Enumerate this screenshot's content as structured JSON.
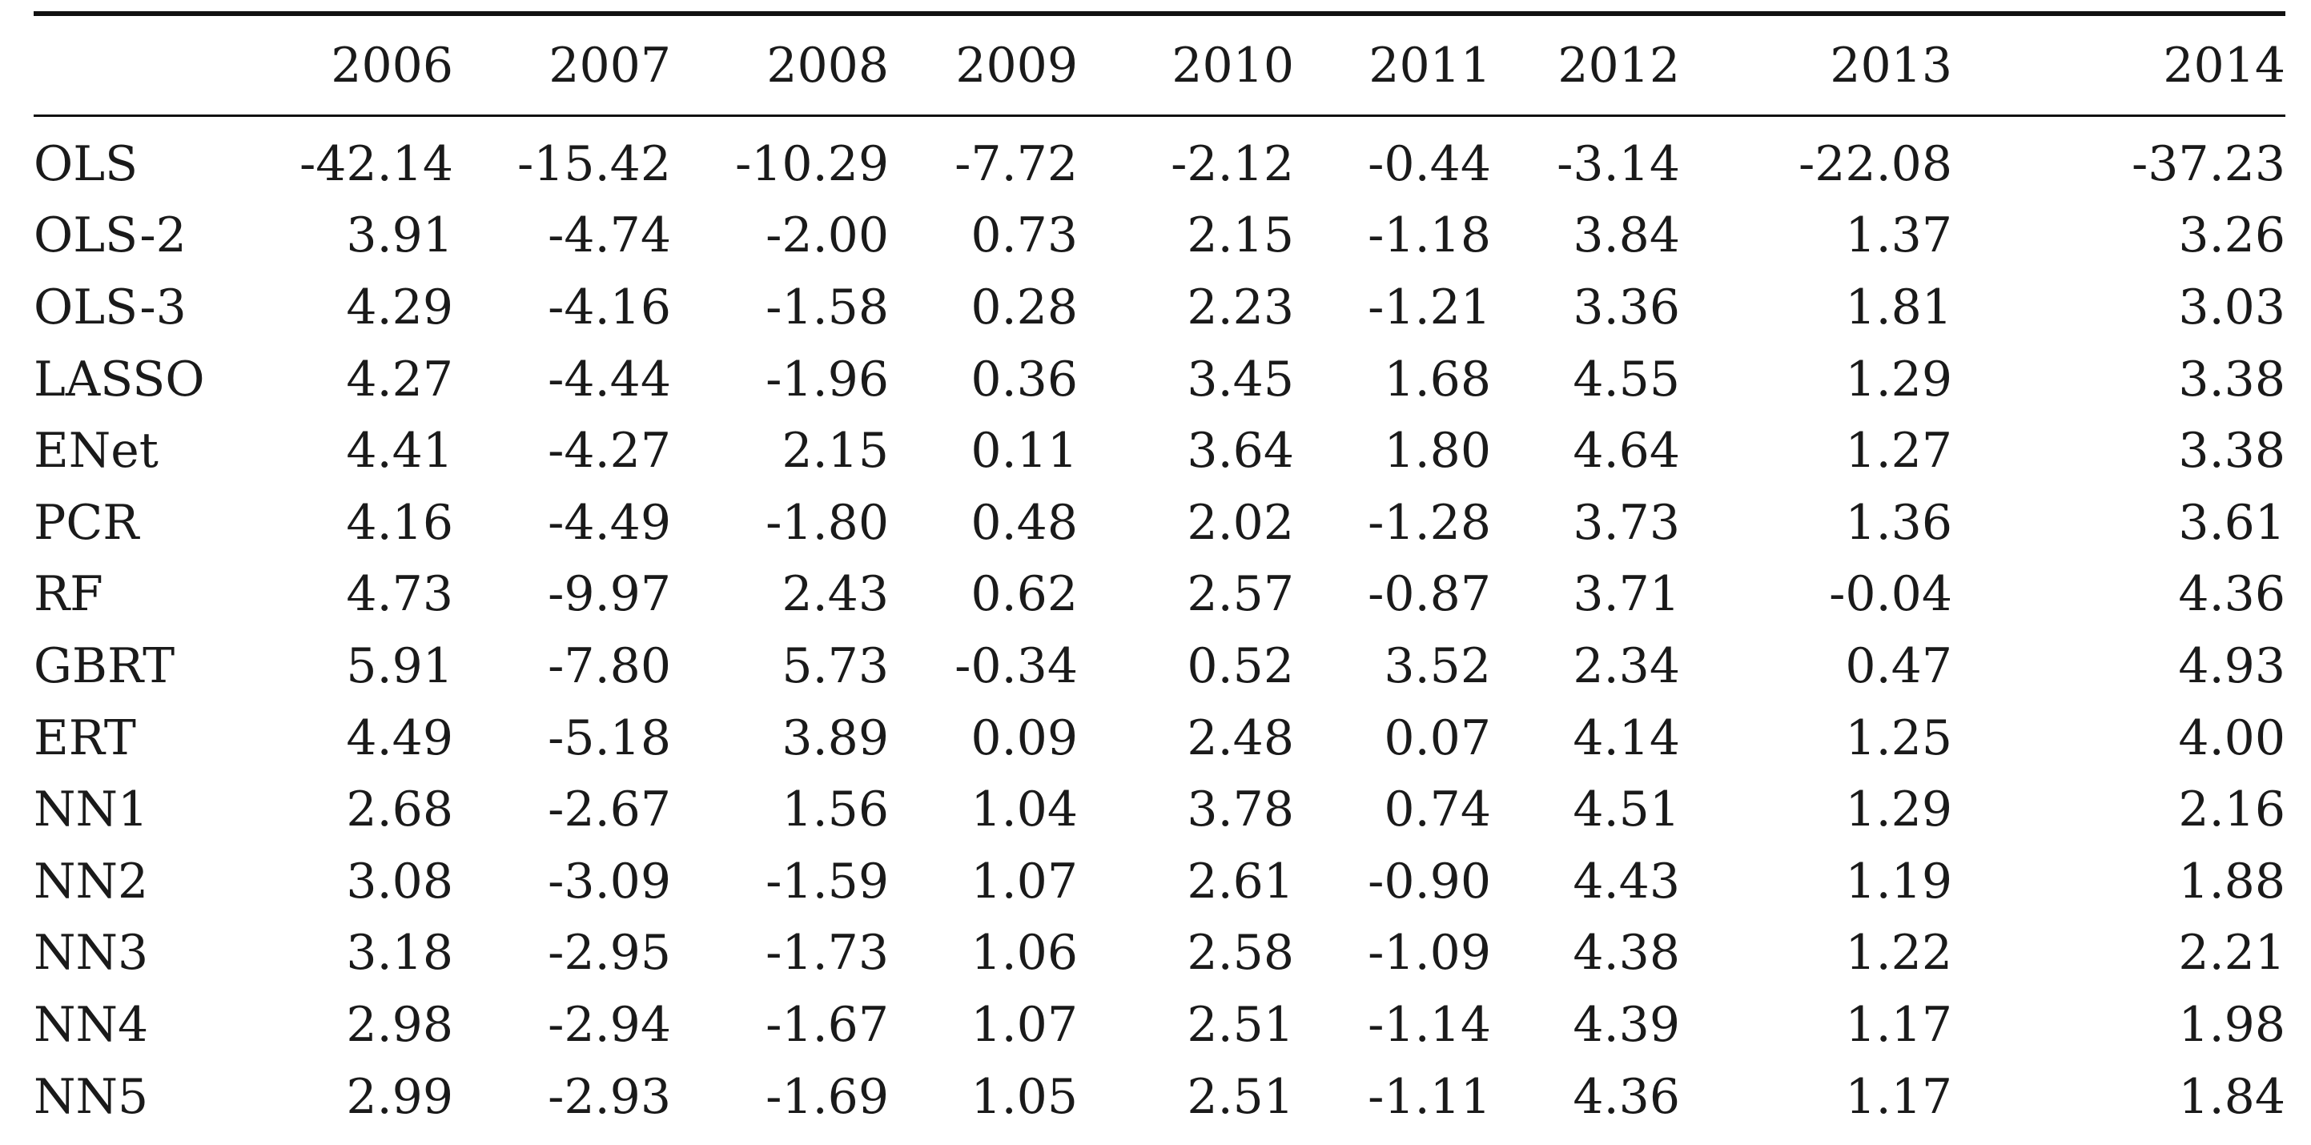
{
  "table": {
    "corner": "",
    "headers": [
      "2006",
      "2007",
      "2008",
      "2009",
      "2010",
      "2011",
      "2012",
      "2013",
      "2014"
    ],
    "rows": [
      {
        "label": "OLS",
        "values": [
          "-42.14",
          "-15.42",
          "-10.29",
          "-7.72",
          "-2.12",
          "-0.44",
          "-3.14",
          "-22.08",
          "-37.23"
        ]
      },
      {
        "label": "OLS-2",
        "values": [
          "3.91",
          "-4.74",
          "-2.00",
          "0.73",
          "2.15",
          "-1.18",
          "3.84",
          "1.37",
          "3.26"
        ]
      },
      {
        "label": "OLS-3",
        "values": [
          "4.29",
          "-4.16",
          "-1.58",
          "0.28",
          "2.23",
          "-1.21",
          "3.36",
          "1.81",
          "3.03"
        ]
      },
      {
        "label": "LASSO",
        "values": [
          "4.27",
          "-4.44",
          "-1.96",
          "0.36",
          "3.45",
          "1.68",
          "4.55",
          "1.29",
          "3.38"
        ]
      },
      {
        "label": "ENet",
        "values": [
          "4.41",
          "-4.27",
          "2.15",
          "0.11",
          "3.64",
          "1.80",
          "4.64",
          "1.27",
          "3.38"
        ]
      },
      {
        "label": "PCR",
        "values": [
          "4.16",
          "-4.49",
          "-1.80",
          "0.48",
          "2.02",
          "-1.28",
          "3.73",
          "1.36",
          "3.61"
        ]
      },
      {
        "label": "RF",
        "values": [
          "4.73",
          "-9.97",
          "2.43",
          "0.62",
          "2.57",
          "-0.87",
          "3.71",
          "-0.04",
          "4.36"
        ]
      },
      {
        "label": "GBRT",
        "values": [
          "5.91",
          "-7.80",
          "5.73",
          "-0.34",
          "0.52",
          "3.52",
          "2.34",
          "0.47",
          "4.93"
        ]
      },
      {
        "label": "ERT",
        "values": [
          "4.49",
          "-5.18",
          "3.89",
          "0.09",
          "2.48",
          "0.07",
          "4.14",
          "1.25",
          "4.00"
        ]
      },
      {
        "label": "NN1",
        "values": [
          "2.68",
          "-2.67",
          "1.56",
          "1.04",
          "3.78",
          "0.74",
          "4.51",
          "1.29",
          "2.16"
        ]
      },
      {
        "label": "NN2",
        "values": [
          "3.08",
          "-3.09",
          "-1.59",
          "1.07",
          "2.61",
          "-0.90",
          "4.43",
          "1.19",
          "1.88"
        ]
      },
      {
        "label": "NN3",
        "values": [
          "3.18",
          "-2.95",
          "-1.73",
          "1.06",
          "2.58",
          "-1.09",
          "4.38",
          "1.22",
          "2.21"
        ]
      },
      {
        "label": "NN4",
        "values": [
          "2.98",
          "-2.94",
          "-1.67",
          "1.07",
          "2.51",
          "-1.14",
          "4.39",
          "1.17",
          "1.98"
        ]
      },
      {
        "label": "NN5",
        "values": [
          "2.99",
          "-2.93",
          "-1.69",
          "1.05",
          "2.51",
          "-1.11",
          "4.36",
          "1.17",
          "1.84"
        ]
      }
    ]
  }
}
